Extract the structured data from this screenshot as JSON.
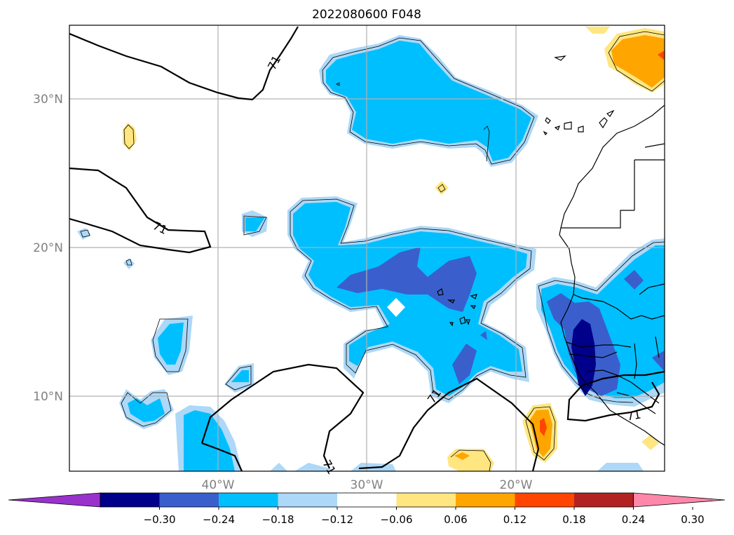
{
  "title": "2022080600 F048",
  "colors": {
    "lightblue": "#add8f7",
    "cyan": "#00bfff",
    "royal": "#3a5fcd",
    "navy": "#00008b",
    "yellow": "#ffe680",
    "orange": "#ffa500",
    "redorange": "#ff4500",
    "gridline": "#b0b0b0"
  },
  "map": {
    "lon_range": [
      -50,
      -10
    ],
    "lat_range": [
      5,
      35
    ],
    "contour_level_label": "71",
    "lat_ticks": [
      "10°N",
      "20°N",
      "30°N"
    ],
    "lon_ticks": [
      "40°W",
      "30°W",
      "20°W"
    ]
  },
  "colorbar": {
    "labels": [
      "−0.30",
      "−0.24",
      "−0.18",
      "−0.12",
      "−0.06",
      "0.06",
      "0.12",
      "0.18",
      "0.24",
      "0.30"
    ],
    "colors": [
      "#9932cc",
      "#00008b",
      "#3a5fcd",
      "#00bfff",
      "#add8f7",
      "#ffffff",
      "#ffe680",
      "#ffa500",
      "#ff4500",
      "#b22222",
      "#ff88aa"
    ]
  }
}
